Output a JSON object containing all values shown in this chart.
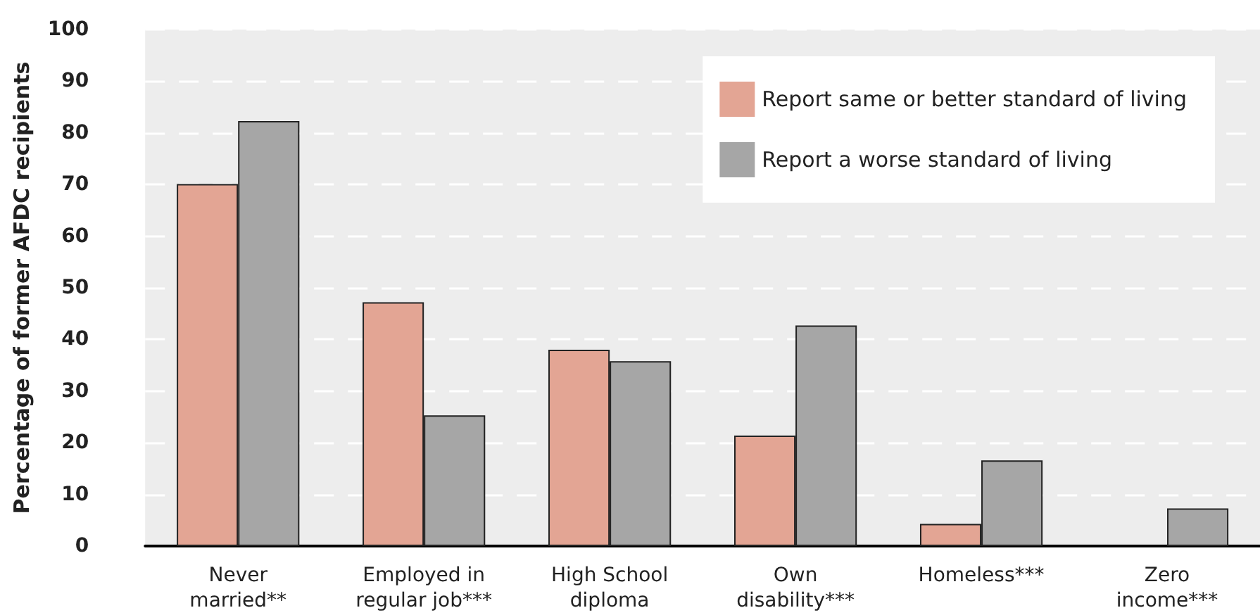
{
  "chart_data": {
    "type": "bar",
    "ylabel": "Percentage of former AFDC recipients",
    "categories": [
      "Never\nmarried**",
      "Employed in\nregular job***",
      "High School\ndiploma",
      "Own\ndisability***",
      "Homeless***",
      "Zero\nincome***"
    ],
    "series": [
      {
        "name": "Report same or better standard of living",
        "color": "#e3a594",
        "values": [
          70.1,
          47.2,
          38.0,
          21.4,
          4.3,
          0
        ]
      },
      {
        "name": "Report a worse standard of living",
        "color": "#a6a6a6",
        "values": [
          82.3,
          25.3,
          35.8,
          42.7,
          16.6,
          7.3
        ]
      }
    ],
    "ylim": [
      0,
      100
    ],
    "yticks": [
      0,
      10,
      20,
      30,
      40,
      50,
      60,
      70,
      80,
      90,
      100
    ],
    "grid": "y",
    "legend": "top right"
  }
}
